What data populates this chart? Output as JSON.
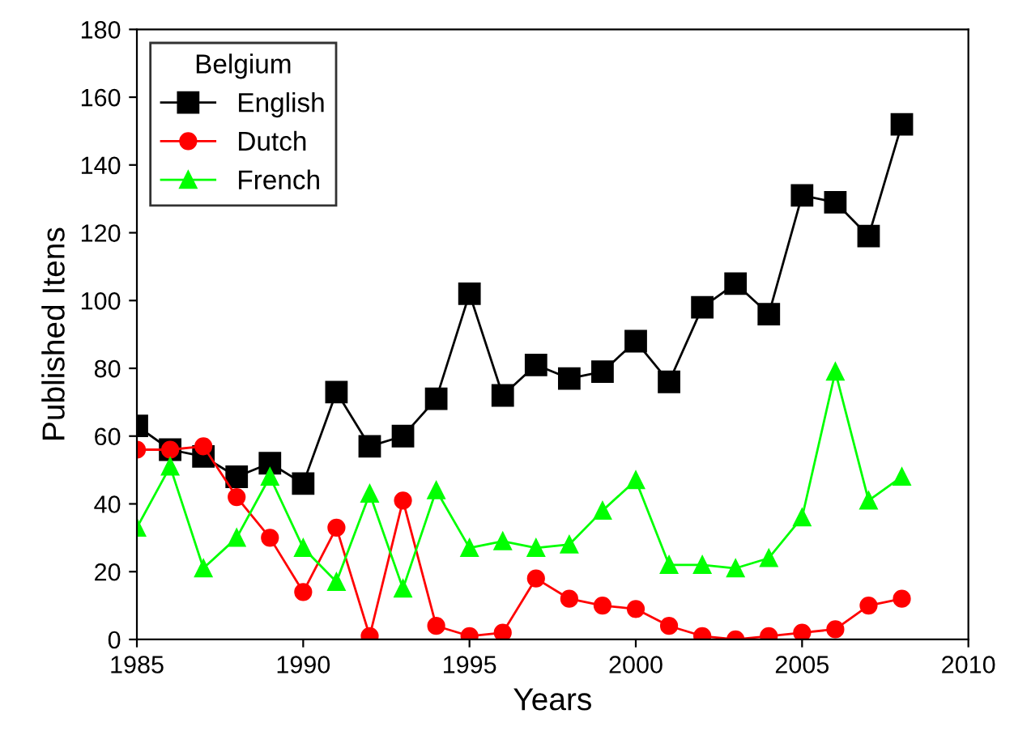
{
  "chart_data": {
    "type": "line",
    "xlabel": "Years",
    "ylabel": "Published Itens",
    "legend_title": "Belgium",
    "legend": "top left",
    "x": [
      1985,
      1986,
      1987,
      1988,
      1989,
      1990,
      1991,
      1992,
      1993,
      1994,
      1995,
      1996,
      1997,
      1998,
      1999,
      2000,
      2001,
      2002,
      2003,
      2004,
      2005,
      2006,
      2007,
      2008
    ],
    "series": [
      {
        "name": "English",
        "color": "#000000",
        "marker": "square",
        "values": [
          63,
          56,
          54,
          48,
          52,
          46,
          73,
          57,
          60,
          71,
          102,
          72,
          81,
          77,
          79,
          88,
          76,
          98,
          105,
          96,
          131,
          129,
          119,
          152
        ]
      },
      {
        "name": "Dutch",
        "color": "#ff0000",
        "marker": "circle",
        "values": [
          56,
          56,
          57,
          42,
          30,
          14,
          33,
          1,
          41,
          4,
          1,
          2,
          18,
          12,
          10,
          9,
          4,
          1,
          0,
          1,
          2,
          3,
          10,
          12
        ]
      },
      {
        "name": "French",
        "color": "#00ff00",
        "marker": "triangle",
        "values": [
          33,
          51,
          21,
          30,
          48,
          27,
          17,
          43,
          15,
          44,
          27,
          29,
          27,
          28,
          38,
          47,
          22,
          22,
          21,
          24,
          36,
          79,
          41,
          48
        ]
      }
    ],
    "xlim": [
      1985,
      2010
    ],
    "xticks": [
      1985,
      1990,
      1995,
      2000,
      2005,
      2010
    ],
    "ylim": [
      0,
      180
    ],
    "yticks": [
      0,
      20,
      40,
      60,
      80,
      100,
      120,
      140,
      160,
      180
    ],
    "grid": false,
    "line_style": "solid"
  }
}
